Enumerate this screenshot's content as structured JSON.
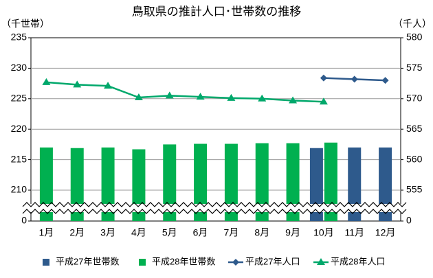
{
  "chart_data": {
    "type": "bar_line",
    "title": "鳥取県の推計人口･世帯数の推移",
    "y_label": "（千世帯）",
    "y2_label": "（千人）",
    "categories": [
      "1月",
      "2月",
      "3月",
      "4月",
      "5月",
      "6月",
      "7月",
      "8月",
      "9月",
      "10月",
      "11月",
      "12月"
    ],
    "series": [
      {
        "name": "平成27年世帯数",
        "kind": "bar",
        "color": "#2e5a8c",
        "values": [
          null,
          null,
          null,
          null,
          null,
          null,
          null,
          null,
          null,
          216.9,
          217.0,
          217.0
        ]
      },
      {
        "name": "平成28年世帯数",
        "kind": "bar",
        "color": "#00b050",
        "values": [
          217.0,
          216.9,
          217.0,
          216.7,
          217.5,
          217.6,
          217.6,
          217.7,
          217.7,
          217.8,
          null,
          null
        ]
      },
      {
        "name": "平成27年人口",
        "kind": "line",
        "marker": "diamond",
        "axis": "y2",
        "color": "#2e5a8c",
        "values": [
          null,
          null,
          null,
          null,
          null,
          null,
          null,
          null,
          null,
          573.4,
          573.2,
          573.0
        ]
      },
      {
        "name": "平成28年人口",
        "kind": "line",
        "marker": "triangle",
        "axis": "y2",
        "color": "#00a86b",
        "values": [
          572.7,
          572.3,
          572.1,
          570.2,
          570.5,
          570.3,
          570.1,
          570.0,
          569.7,
          569.5,
          null,
          null
        ]
      }
    ],
    "ylim": [
      0,
      235
    ],
    "yticks": [
      0,
      210,
      215,
      220,
      225,
      230,
      235
    ],
    "y2lim": [
      0,
      580
    ],
    "y2ticks": [
      0,
      555,
      560,
      565,
      570,
      575,
      580
    ],
    "axis_break": true,
    "grid": true,
    "legend": "bottom"
  }
}
